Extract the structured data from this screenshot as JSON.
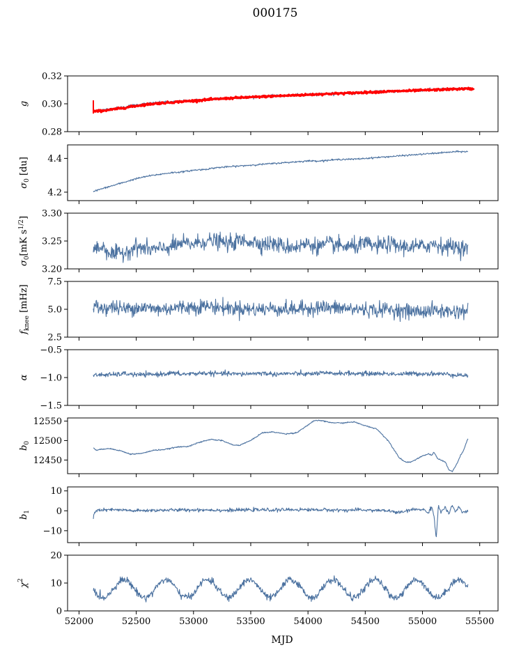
{
  "figure": {
    "title": "000175",
    "xlabel": "MJD"
  },
  "colors": {
    "series": "#4c72a0",
    "overlay": "#ff0000",
    "axis": "#000000"
  },
  "chart_data": [
    {
      "type": "line",
      "ylabel": "g",
      "ylim": [
        0.28,
        0.32
      ],
      "yticks": [
        "0.28",
        "0.30",
        "0.32"
      ],
      "xlim": [
        51900,
        55660
      ],
      "show_xticklabels": false,
      "series": [
        {
          "color": "#4c72a0",
          "x": [
            52125,
            52200,
            52300,
            52400,
            52500,
            52600,
            52700,
            52800,
            52900,
            53000,
            53100,
            53200,
            53300,
            53400,
            53500,
            53600,
            53700,
            53800,
            53900,
            54000,
            54100,
            54200,
            54300,
            54400,
            54500,
            54600,
            54700,
            54800,
            54900,
            55000,
            55100,
            55200,
            55300,
            55400
          ],
          "y": [
            0.2945,
            0.2955,
            0.2965,
            0.2978,
            0.2992,
            0.3002,
            0.3008,
            0.3012,
            0.3018,
            0.3024,
            0.303,
            0.3036,
            0.304,
            0.3045,
            0.3048,
            0.3052,
            0.3056,
            0.3058,
            0.3062,
            0.3065,
            0.307,
            0.3072,
            0.3076,
            0.3078,
            0.3082,
            0.3086,
            0.3088,
            0.3092,
            0.3095,
            0.3098,
            0.3101,
            0.3104,
            0.3108,
            0.311
          ],
          "noise": 0.0008
        },
        {
          "color": "#ff0000",
          "x": [
            52125,
            52200,
            52300,
            52400,
            52500,
            52600,
            52700,
            52800,
            52900,
            53000,
            53100,
            53200,
            53300,
            53400,
            53500,
            53600,
            53700,
            53800,
            53900,
            54000,
            54100,
            54200,
            54300,
            54400,
            54500,
            54600,
            54700,
            54800,
            54900,
            55000,
            55100,
            55200,
            55300,
            55400,
            55450
          ],
          "y": [
            0.2945,
            0.295,
            0.296,
            0.2972,
            0.2985,
            0.2996,
            0.3004,
            0.301,
            0.3016,
            0.3022,
            0.3028,
            0.3034,
            0.3039,
            0.3044,
            0.3047,
            0.3051,
            0.3055,
            0.3058,
            0.3062,
            0.3065,
            0.3069,
            0.3072,
            0.3075,
            0.3078,
            0.3082,
            0.3085,
            0.3088,
            0.3091,
            0.3094,
            0.3097,
            0.31,
            0.3103,
            0.3106,
            0.3108,
            0.3106
          ],
          "noise": 0.0006,
          "linewidth": 3
        }
      ]
    },
    {
      "type": "line",
      "ylabel": "σ0 [du]",
      "ylim": [
        4.15,
        4.48
      ],
      "yticks": [
        "4.2",
        "4.4"
      ],
      "xlim": [
        51900,
        55660
      ],
      "show_xticklabels": false,
      "series": [
        {
          "color": "#4c72a0",
          "x": [
            52125,
            52200,
            52300,
            52400,
            52500,
            52600,
            52700,
            52800,
            52900,
            53000,
            53100,
            53200,
            53300,
            53400,
            53500,
            53600,
            53700,
            53800,
            53900,
            54000,
            54100,
            54200,
            54300,
            54400,
            54500,
            54600,
            54700,
            54800,
            54900,
            55000,
            55100,
            55200,
            55300,
            55400
          ],
          "y": [
            4.205,
            4.22,
            4.24,
            4.26,
            4.28,
            4.295,
            4.305,
            4.315,
            4.32,
            4.33,
            4.335,
            4.345,
            4.35,
            4.355,
            4.36,
            4.365,
            4.37,
            4.375,
            4.38,
            4.385,
            4.385,
            4.39,
            4.395,
            4.395,
            4.4,
            4.405,
            4.41,
            4.415,
            4.42,
            4.425,
            4.43,
            4.435,
            4.44,
            4.44
          ],
          "noise": 0.004
        }
      ]
    },
    {
      "type": "line",
      "ylabel": "σ0[mK s^1/2]",
      "ylim": [
        3.2,
        3.3
      ],
      "yticks": [
        "3.20",
        "3.25",
        "3.30"
      ],
      "xlim": [
        51900,
        55660
      ],
      "show_xticklabels": false,
      "series": [
        {
          "color": "#4c72a0",
          "x": [
            52125,
            52200,
            52300,
            52400,
            52500,
            52600,
            52700,
            52800,
            52900,
            53000,
            53100,
            53200,
            53300,
            53400,
            53500,
            53600,
            53700,
            53800,
            53900,
            54000,
            54100,
            54200,
            54300,
            54400,
            54500,
            54600,
            54700,
            54800,
            54900,
            55000,
            55100,
            55200,
            55300,
            55400
          ],
          "y": [
            3.235,
            3.24,
            3.225,
            3.23,
            3.24,
            3.235,
            3.235,
            3.24,
            3.245,
            3.245,
            3.25,
            3.25,
            3.245,
            3.25,
            3.25,
            3.245,
            3.245,
            3.24,
            3.24,
            3.245,
            3.24,
            3.245,
            3.24,
            3.24,
            3.245,
            3.24,
            3.245,
            3.24,
            3.24,
            3.24,
            3.245,
            3.24,
            3.24,
            3.235
          ],
          "noise": 0.012
        }
      ]
    },
    {
      "type": "line",
      "ylabel": "f_knee [mHz]",
      "ylim": [
        2.5,
        7.5
      ],
      "yticks": [
        "2.5",
        "5.0",
        "7.5"
      ],
      "xlim": [
        51900,
        55660
      ],
      "show_xticklabels": false,
      "series": [
        {
          "color": "#4c72a0",
          "x": [
            52125,
            52200,
            52300,
            52400,
            52500,
            52600,
            52700,
            52800,
            52900,
            53000,
            53100,
            53200,
            53300,
            53400,
            53500,
            53600,
            53700,
            53800,
            53900,
            54000,
            54100,
            54200,
            54300,
            54400,
            54500,
            54600,
            54700,
            54800,
            54900,
            55000,
            55100,
            55200,
            55300,
            55400
          ],
          "y": [
            5.3,
            5.1,
            5.2,
            5.0,
            5.2,
            5.1,
            5.0,
            5.1,
            5.2,
            5.2,
            5.3,
            5.2,
            5.1,
            5.1,
            5.0,
            5.0,
            5.1,
            5.0,
            5.0,
            5.1,
            5.2,
            5.1,
            5.1,
            5.0,
            5.0,
            4.9,
            5.0,
            4.9,
            4.8,
            4.8,
            4.9,
            4.8,
            4.8,
            4.9
          ],
          "noise": 0.55
        }
      ]
    },
    {
      "type": "line",
      "ylabel": "α",
      "ylim": [
        -1.5,
        -0.5
      ],
      "yticks": [
        "−1.5",
        "−1.0",
        "−0.5"
      ],
      "xlim": [
        51900,
        55660
      ],
      "show_xticklabels": false,
      "series": [
        {
          "color": "#4c72a0",
          "x": [
            52125,
            52200,
            52300,
            52400,
            52500,
            52600,
            52700,
            52800,
            52900,
            53000,
            53100,
            53200,
            53300,
            53400,
            53500,
            53600,
            53700,
            53800,
            53900,
            54000,
            54100,
            54200,
            54300,
            54400,
            54500,
            54600,
            54700,
            54800,
            54900,
            55000,
            55100,
            55200,
            55300,
            55400
          ],
          "y": [
            -0.96,
            -0.95,
            -0.95,
            -0.93,
            -0.95,
            -0.95,
            -0.94,
            -0.92,
            -0.94,
            -0.93,
            -0.92,
            -0.93,
            -0.93,
            -0.94,
            -0.93,
            -0.92,
            -0.94,
            -0.93,
            -0.93,
            -0.94,
            -0.92,
            -0.93,
            -0.92,
            -0.93,
            -0.93,
            -0.93,
            -0.93,
            -0.94,
            -0.93,
            -0.93,
            -0.93,
            -0.94,
            -0.95,
            -0.97
          ],
          "noise": 0.035
        }
      ]
    },
    {
      "type": "line",
      "ylabel": "b0",
      "ylim": [
        12415,
        12558
      ],
      "yticks": [
        "12450",
        "12500",
        "12550"
      ],
      "xlim": [
        51900,
        55660
      ],
      "show_xticklabels": false,
      "series": [
        {
          "color": "#4c72a0",
          "x": [
            52125,
            52150,
            52250,
            52350,
            52450,
            52550,
            52650,
            52750,
            52850,
            52950,
            53050,
            53150,
            53250,
            53350,
            53400,
            53500,
            53600,
            53700,
            53800,
            53900,
            53950,
            54050,
            54100,
            54200,
            54300,
            54400,
            54500,
            54600,
            54700,
            54800,
            54850,
            54900,
            55000,
            55050,
            55080,
            55100,
            55130,
            55160,
            55200,
            55230,
            55260,
            55300,
            55330,
            55360,
            55400
          ],
          "y": [
            12482,
            12475,
            12480,
            12475,
            12465,
            12467,
            12475,
            12477,
            12483,
            12485,
            12495,
            12503,
            12500,
            12488,
            12488,
            12500,
            12520,
            12522,
            12517,
            12520,
            12530,
            12550,
            12552,
            12546,
            12545,
            12548,
            12538,
            12530,
            12500,
            12455,
            12445,
            12445,
            12460,
            12466,
            12462,
            12470,
            12455,
            12450,
            12445,
            12425,
            12420,
            12440,
            12460,
            12475,
            12508
          ],
          "noise": 1.2
        }
      ]
    },
    {
      "type": "line",
      "ylabel": "b1",
      "ylim": [
        -16,
        12
      ],
      "yticks": [
        "−10",
        "0",
        "10"
      ],
      "xlim": [
        51900,
        55660
      ],
      "show_xticklabels": false,
      "series": [
        {
          "color": "#4c72a0",
          "x": [
            52125,
            52130,
            52150,
            52300,
            52500,
            52700,
            52900,
            53100,
            53300,
            53500,
            53700,
            53900,
            54100,
            54300,
            54500,
            54700,
            54800,
            54900,
            55000,
            55050,
            55080,
            55100,
            55120,
            55140,
            55160,
            55200,
            55230,
            55260,
            55290,
            55320,
            55350,
            55400
          ],
          "y": [
            -3.5,
            -1.5,
            0.2,
            0.5,
            0.0,
            0.3,
            0.4,
            0.5,
            0.2,
            0.5,
            0.4,
            0.6,
            0.5,
            0.3,
            0.4,
            0.0,
            -1.0,
            0.5,
            0.8,
            -1.0,
            2.0,
            -2.0,
            -14.0,
            3.0,
            -1.0,
            2.0,
            -2.0,
            3.0,
            -1.0,
            2.0,
            -1.0,
            0.0
          ],
          "noise": 0.7
        }
      ]
    },
    {
      "type": "line",
      "ylabel": "χ2",
      "ylim": [
        0,
        20
      ],
      "yticks": [
        "0",
        "10",
        "20"
      ],
      "xlim": [
        51900,
        55660
      ],
      "xticks": [
        "52000",
        "52500",
        "53000",
        "53500",
        "54000",
        "54500",
        "55000",
        "55500"
      ],
      "xtick_values": [
        52000,
        52500,
        53000,
        53500,
        54000,
        54500,
        55000,
        55500
      ],
      "show_xticklabels": true,
      "series": [
        {
          "color": "#4c72a0",
          "seasonal": {
            "mean": 8.0,
            "amplitude": 3.2,
            "period": 365.25,
            "phase": 52300
          },
          "x_range": [
            52125,
            55400
          ],
          "noise": 1.2
        }
      ]
    }
  ]
}
